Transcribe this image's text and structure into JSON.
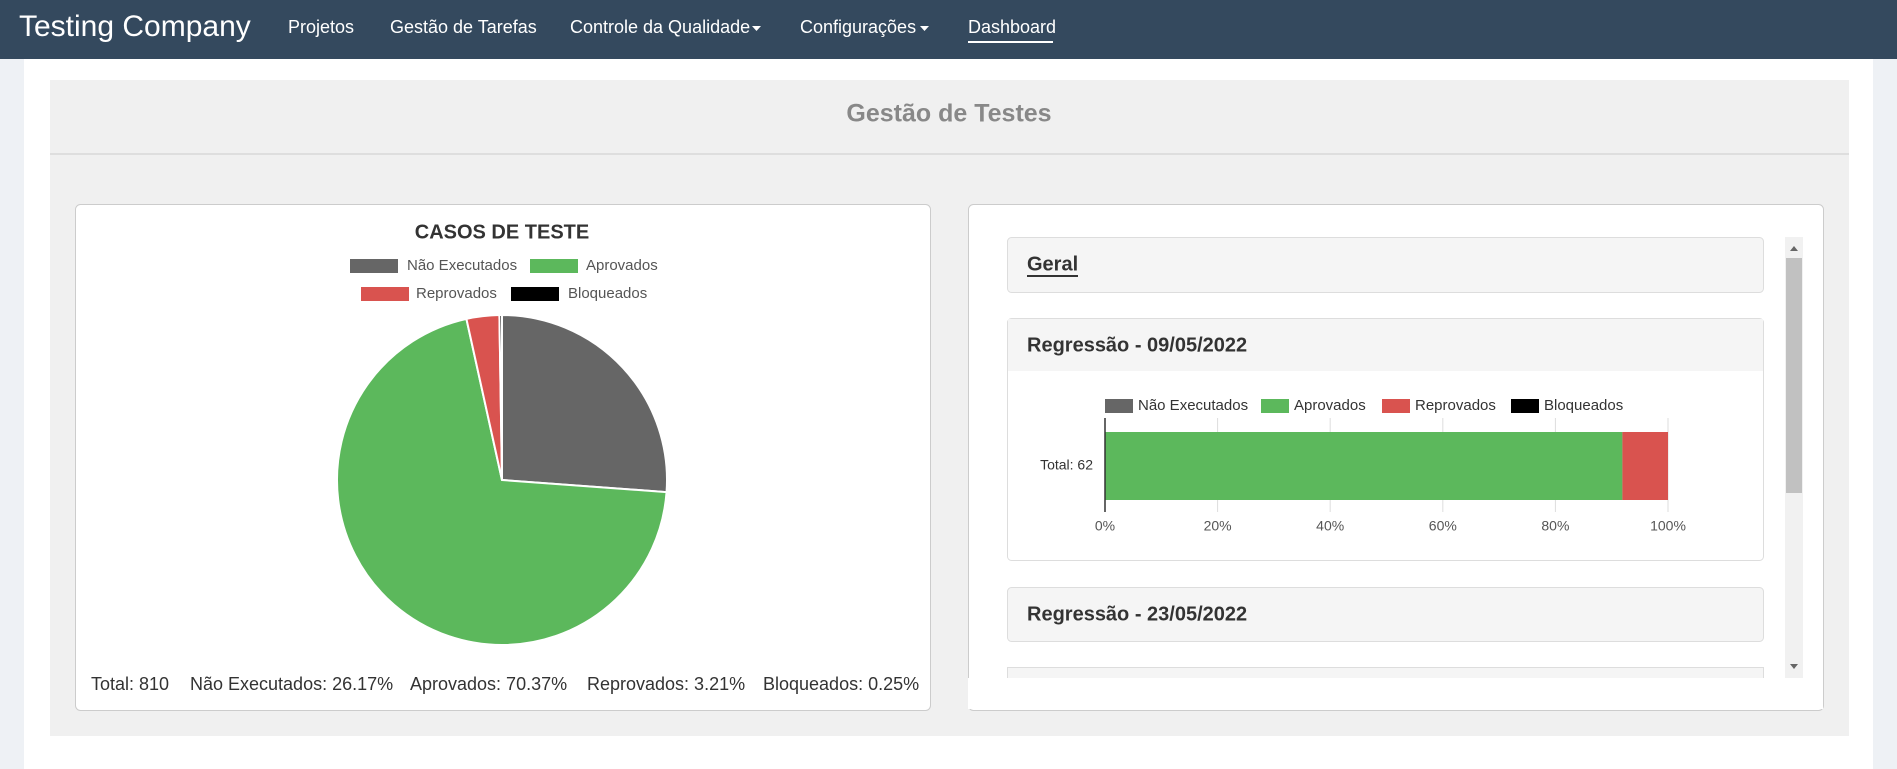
{
  "nav": {
    "brand": "Testing Company",
    "items": [
      "Projetos",
      "Gestão de Tarefas",
      "Controle da Qualidade",
      "Configurações",
      "Dashboard"
    ]
  },
  "panel_title": "Gestão de Testes",
  "accordion": [
    "Geral",
    "Regressão - 09/05/2022",
    "Regressão - 23/05/2022"
  ],
  "chart_data": [
    {
      "type": "pie",
      "title": "CASOS DE TESTE",
      "categories": [
        "Não Executados",
        "Aprovados",
        "Reprovados",
        "Bloqueados"
      ],
      "values": [
        26.17,
        70.37,
        3.21,
        0.25
      ],
      "colors": [
        "#666666",
        "#5cb85c",
        "#d9534f",
        "#000000"
      ],
      "footer": [
        "Total: 810",
        "Não Executados: 26.17%",
        "Aprovados: 70.37%",
        "Reprovados: 3.21%",
        "Bloqueados: 0.25%"
      ]
    },
    {
      "type": "bar",
      "orientation": "horizontal",
      "stacked": true,
      "categories": [
        "Total: 62"
      ],
      "series": [
        {
          "name": "Não Executados",
          "color": "#666666",
          "values": [
            0
          ]
        },
        {
          "name": "Aprovados",
          "color": "#5cb85c",
          "values": [
            91.9
          ]
        },
        {
          "name": "Reprovados",
          "color": "#d9534f",
          "values": [
            8.1
          ]
        },
        {
          "name": "Bloqueados",
          "color": "#000000",
          "values": [
            0
          ]
        }
      ],
      "xlim": [
        0,
        100
      ],
      "xticks": [
        {
          "value": 0,
          "label": "0%"
        },
        {
          "value": 20,
          "label": "20%"
        },
        {
          "value": 40,
          "label": "40%"
        },
        {
          "value": 60,
          "label": "60%"
        },
        {
          "value": 80,
          "label": "80%"
        },
        {
          "value": 100,
          "label": "100%"
        }
      ],
      "grid": true
    }
  ]
}
